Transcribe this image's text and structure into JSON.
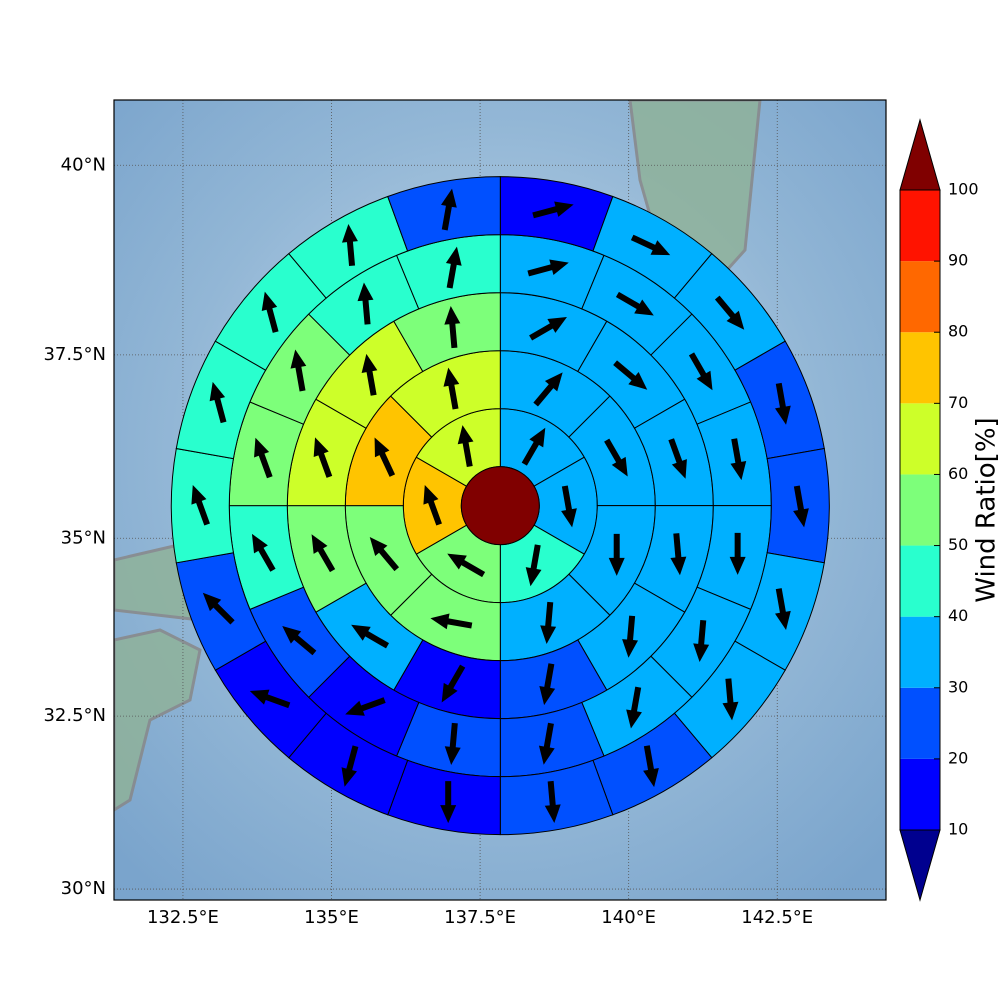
{
  "chart_data": {
    "type": "polar-sector-map",
    "projection": "mercator",
    "xlim": [
      131.34,
      144.33
    ],
    "ylim": [
      29.84,
      40.84
    ],
    "xticks": [
      {
        "value": 132.5,
        "label": "132.5°E"
      },
      {
        "value": 135,
        "label": "135°E"
      },
      {
        "value": 137.5,
        "label": "137.5°E"
      },
      {
        "value": 140,
        "label": "140°E"
      },
      {
        "value": 142.5,
        "label": "142.5°E"
      }
    ],
    "yticks": [
      {
        "value": 30,
        "label": "30°N"
      },
      {
        "value": 32.5,
        "label": "32.5°N"
      },
      {
        "value": 35,
        "label": "35°N"
      },
      {
        "value": 37.5,
        "label": "37.5°N"
      },
      {
        "value": 40,
        "label": "40°N"
      }
    ],
    "grid": true,
    "center": [
      137.84,
      35.45
    ],
    "center_value": 105,
    "rings": [
      {
        "values": [
          35,
          35,
          45,
          55,
          75,
          65
        ],
        "directions": [
          30,
          170,
          190,
          300,
          340,
          350
        ]
      },
      {
        "values": [
          35,
          35,
          35,
          35,
          55,
          55,
          75,
          65
        ],
        "directions": [
          40,
          150,
          180,
          185,
          280,
          320,
          335,
          350
        ]
      },
      {
        "values": [
          35,
          35,
          35,
          35,
          35,
          25,
          15,
          35,
          55,
          65,
          65,
          55
        ],
        "directions": [
          60,
          130,
          160,
          175,
          185,
          190,
          210,
          300,
          330,
          340,
          350,
          355
        ]
      },
      {
        "values": [
          35,
          35,
          35,
          35,
          35,
          35,
          35,
          25,
          25,
          15,
          25,
          45,
          55,
          55,
          45,
          45
        ],
        "directions": [
          75,
          120,
          150,
          170,
          180,
          185,
          190,
          190,
          185,
          250,
          310,
          330,
          340,
          350,
          355,
          10
        ]
      },
      {
        "values": [
          15,
          35,
          35,
          25,
          25,
          35,
          35,
          25,
          25,
          15,
          15,
          15,
          25,
          45,
          45,
          45,
          45,
          25
        ],
        "directions": [
          75,
          115,
          140,
          170,
          170,
          170,
          175,
          170,
          175,
          180,
          195,
          290,
          315,
          340,
          345,
          345,
          355,
          10
        ]
      }
    ],
    "colorbar": {
      "label": "Wind Ratio[%]",
      "levels": [
        10,
        20,
        30,
        40,
        50,
        60,
        70,
        80,
        90,
        100
      ],
      "colors": [
        "#0000ff",
        "#0050ff",
        "#00b0ff",
        "#29ffce",
        "#7dff7a",
        "#cdff29",
        "#ffc400",
        "#ff6800",
        "#ff1300"
      ],
      "under_color": "#00008f",
      "over_color": "#800000"
    }
  }
}
